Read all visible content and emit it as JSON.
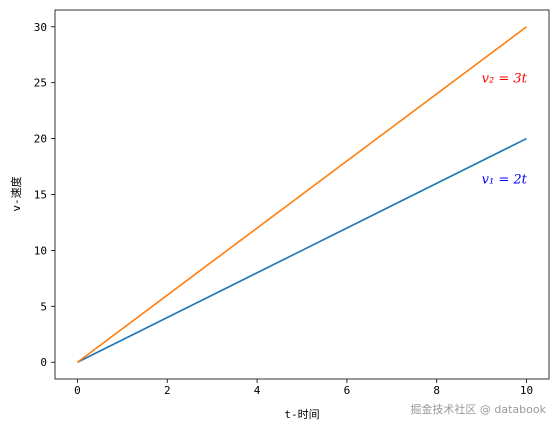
{
  "chart_data": {
    "type": "line",
    "x": [
      0,
      10
    ],
    "series": [
      {
        "name": "v₁ = 2t",
        "color": "#1f77b4",
        "values": [
          0,
          20
        ]
      },
      {
        "name": "v₂ = 3t",
        "color": "#ff7f0e",
        "values": [
          0,
          30
        ]
      }
    ],
    "xlim": [
      -0.5,
      10.5
    ],
    "ylim": [
      -1.5,
      31.5
    ],
    "xticks": [
      0,
      2,
      4,
      6,
      8,
      10
    ],
    "yticks": [
      0,
      5,
      10,
      15,
      20,
      25,
      30
    ],
    "x_label": "t-时间",
    "y_label": "v-速度",
    "annotations": [
      {
        "text": "v₁ = 2t",
        "x": 9,
        "y": 16,
        "color": "blue"
      },
      {
        "text": "v₂ = 3t",
        "x": 9,
        "y": 25,
        "color": "red"
      }
    ],
    "watermark": "掘金技术社区 @ databook"
  }
}
